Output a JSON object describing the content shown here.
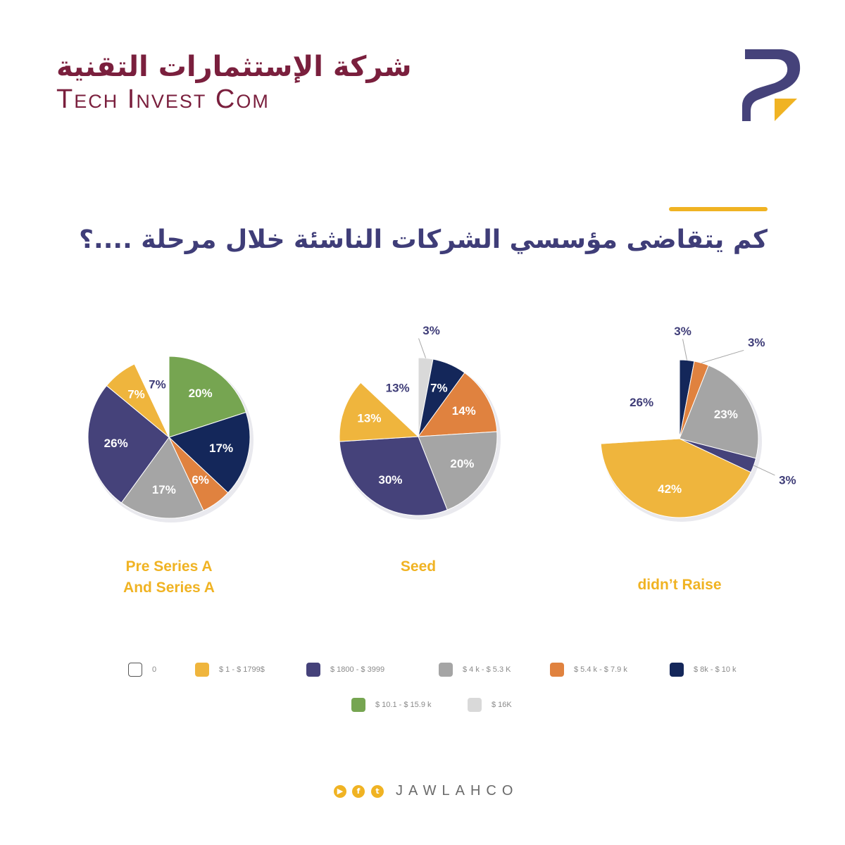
{
  "header": {
    "brand_arabic": "شركة الإستثمارات التقنية",
    "brand_english": "Tech Invest Com"
  },
  "heading": "كم يتقاضى مؤسسي الشركات الناشئة خلال مرحلة ....؟",
  "colors": {
    "accent": "#f0b323",
    "brand": "#7a1f3d",
    "heading": "#3f3d78"
  },
  "chart_data": [
    {
      "type": "pie",
      "title": "Pre Series A And Series A",
      "title_lines": [
        "Pre Series A",
        "And Series A"
      ],
      "slices": [
        {
          "category": "$ 10.1 - $ 15.9 k",
          "value": 20,
          "label": "20%",
          "color": "#76a551"
        },
        {
          "category": "$ 8k - $ 10 k",
          "value": 17,
          "label": "17%",
          "color": "#14275a"
        },
        {
          "category": "$ 5.4 k - $ 7.9 k",
          "value": 6,
          "label": "6%",
          "color": "#e0823f"
        },
        {
          "category": "$ 4 k - $ 5.3 K",
          "value": 17,
          "label": "17%",
          "color": "#a5a5a5"
        },
        {
          "category": "$ 1800 - $ 3999",
          "value": 26,
          "label": "26%",
          "color": "#45427a"
        },
        {
          "category": "$ 1 - $ 1799$",
          "value": 7,
          "label": "7%",
          "color": "#efb53d"
        },
        {
          "category": "0",
          "value": 7,
          "label": "7%",
          "color": "#ffffff"
        }
      ]
    },
    {
      "type": "pie",
      "title": "Seed",
      "title_lines": [
        "Seed"
      ],
      "slices": [
        {
          "category": "$ 16K",
          "value": 3,
          "label": "3%",
          "color": "#d9d9d9"
        },
        {
          "category": "$ 8k - $ 10 k",
          "value": 7,
          "label": "7%",
          "color": "#14275a"
        },
        {
          "category": "$ 5.4 k - $ 7.9 k",
          "value": 14,
          "label": "14%",
          "color": "#e0823f"
        },
        {
          "category": "$ 4 k - $ 5.3 K",
          "value": 20,
          "label": "20%",
          "color": "#a5a5a5"
        },
        {
          "category": "$ 1800 - $ 3999",
          "value": 30,
          "label": "30%",
          "color": "#45427a"
        },
        {
          "category": "$ 1 - $ 1799$",
          "value": 13,
          "label": "13%",
          "color": "#efb53d"
        },
        {
          "category": "0",
          "value": 13,
          "label": "13%",
          "color": "#ffffff"
        }
      ]
    },
    {
      "type": "pie",
      "title": "didn't Raise",
      "title_lines": [
        "didn’t Raise"
      ],
      "slices": [
        {
          "category": "$ 8k - $ 10 k",
          "value": 3,
          "label": "3%",
          "color": "#14275a"
        },
        {
          "category": "$ 5.4 k - $ 7.9 k",
          "value": 3,
          "label": "3%",
          "color": "#e0823f"
        },
        {
          "category": "$ 4 k - $ 5.3 K",
          "value": 23,
          "label": "23%",
          "color": "#a5a5a5"
        },
        {
          "category": "$ 1800 - $ 3999",
          "value": 3,
          "label": "3%",
          "color": "#45427a"
        },
        {
          "category": "$ 1 - $ 1799$",
          "value": 42,
          "label": "42%",
          "color": "#efb53d"
        },
        {
          "category": "0",
          "value": 26,
          "label": "26%",
          "color": "#ffffff"
        }
      ]
    }
  ],
  "legend": [
    {
      "label": "0",
      "color": "#ffffff"
    },
    {
      "label": "$ 1 - $ 1799$",
      "color": "#efb53d"
    },
    {
      "label": "$ 1800 - $  3999",
      "color": "#45427a"
    },
    {
      "label": "$ 4 k - $ 5.3 K",
      "color": "#a5a5a5"
    },
    {
      "label": "$ 5.4 k - $ 7.9 k",
      "color": "#e0823f"
    },
    {
      "label": "$ 8k - $ 10 k",
      "color": "#14275a"
    },
    {
      "label": "$ 10.1 - $ 15.9 k",
      "color": "#76a551"
    },
    {
      "label": "$ 16K",
      "color": "#d9d9d9"
    }
  ],
  "footer": {
    "handle": "JAWLAHCO",
    "social_icons": [
      "youtube-icon",
      "facebook-icon",
      "twitter-icon"
    ]
  }
}
